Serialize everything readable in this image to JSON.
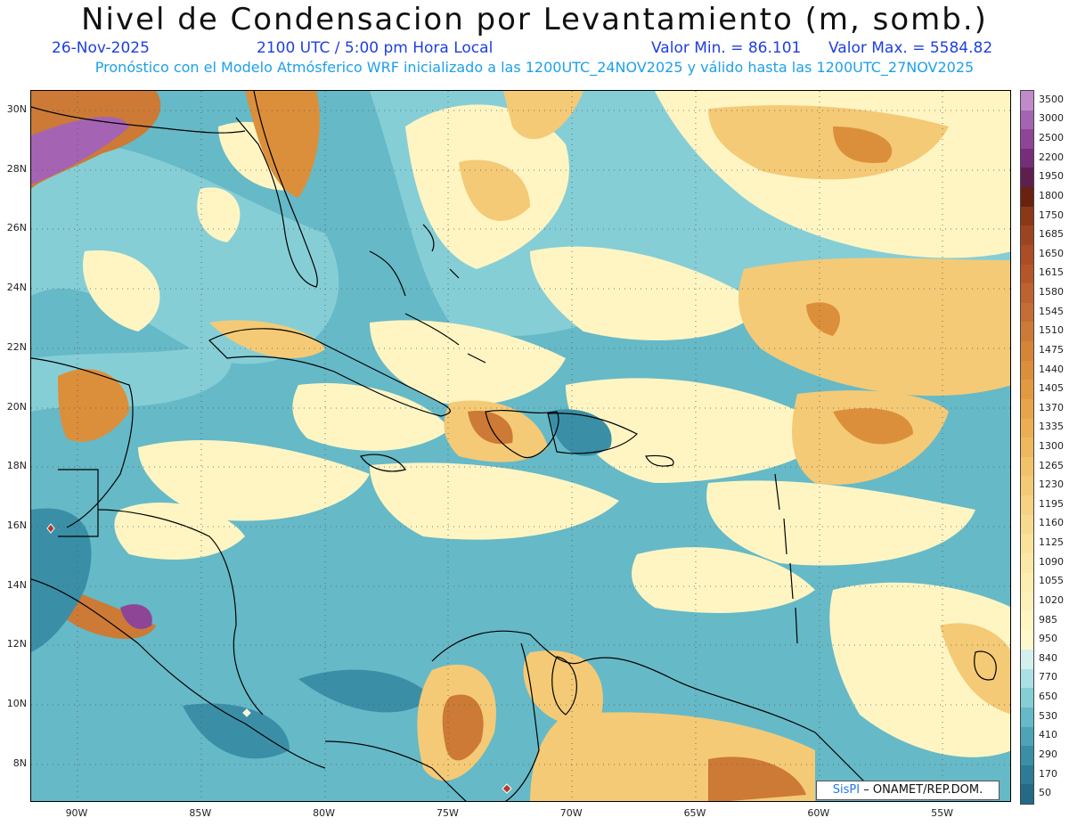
{
  "header": {
    "title": "Nivel de Condensacion por Levantamiento (m, somb.)",
    "date": "26-Nov-2025",
    "time": "2100 UTC / 5:00 pm Hora Local",
    "min_value": "Valor Min. = 86.101",
    "max_value": "Valor Max. = 5584.82",
    "forecast_note": "Pronóstico con el Modelo Atmósferico WRF inicializado a las 1200UTC_24NOV2025 y válido hasta las  1200UTC_27NOV2025"
  },
  "axes": {
    "lat_ticks": [
      "30N",
      "28N",
      "26N",
      "24N",
      "22N",
      "20N",
      "18N",
      "16N",
      "14N",
      "12N",
      "10N",
      "8N"
    ],
    "lon_ticks": [
      "90W",
      "85W",
      "80W",
      "75W",
      "70W",
      "65W",
      "60W",
      "55W"
    ]
  },
  "legend": {
    "labels": [
      "3500",
      "3000",
      "2500",
      "2200",
      "1950",
      "1800",
      "1750",
      "1685",
      "1650",
      "1615",
      "1580",
      "1545",
      "1510",
      "1475",
      "1440",
      "1405",
      "1370",
      "1335",
      "1300",
      "1265",
      "1230",
      "1195",
      "1160",
      "1125",
      "1090",
      "1055",
      "1020",
      "985",
      "950",
      "840",
      "770",
      "650",
      "530",
      "410",
      "290",
      "170",
      "50"
    ],
    "colors": [
      "#c08bc8",
      "#a563b4",
      "#8e4596",
      "#762e7a",
      "#5e1f4e",
      "#6a2110",
      "#8a3818",
      "#9c4420",
      "#ab4d25",
      "#b5562a",
      "#bd6330",
      "#c46d34",
      "#cc7a36",
      "#d58538",
      "#dc8f3b",
      "#e29a41",
      "#e8a44a",
      "#ecae53",
      "#efb85e",
      "#f2c26a",
      "#f4ca76",
      "#f6d282",
      "#f8da8e",
      "#fae29b",
      "#fbe8a6",
      "#fcedb0",
      "#fdf1ba",
      "#fef5c3",
      "#fef8cc",
      "#d3f0ee",
      "#a9e1e4",
      "#86ced6",
      "#66b9c7",
      "#4da4b7",
      "#3a8fa7",
      "#2d7b96",
      "#246a86"
    ]
  },
  "map": {
    "colors": {
      "land_outline": "#000000",
      "ocean_low": "#66b9c7",
      "ocean_deep": "#3a8fa7",
      "high": "#f4ca76",
      "peak": "#cc7a36",
      "extreme": "#8e4596"
    }
  },
  "credit": {
    "brand": "SisPI",
    "org": " – ONAMET/REP.DOM."
  }
}
